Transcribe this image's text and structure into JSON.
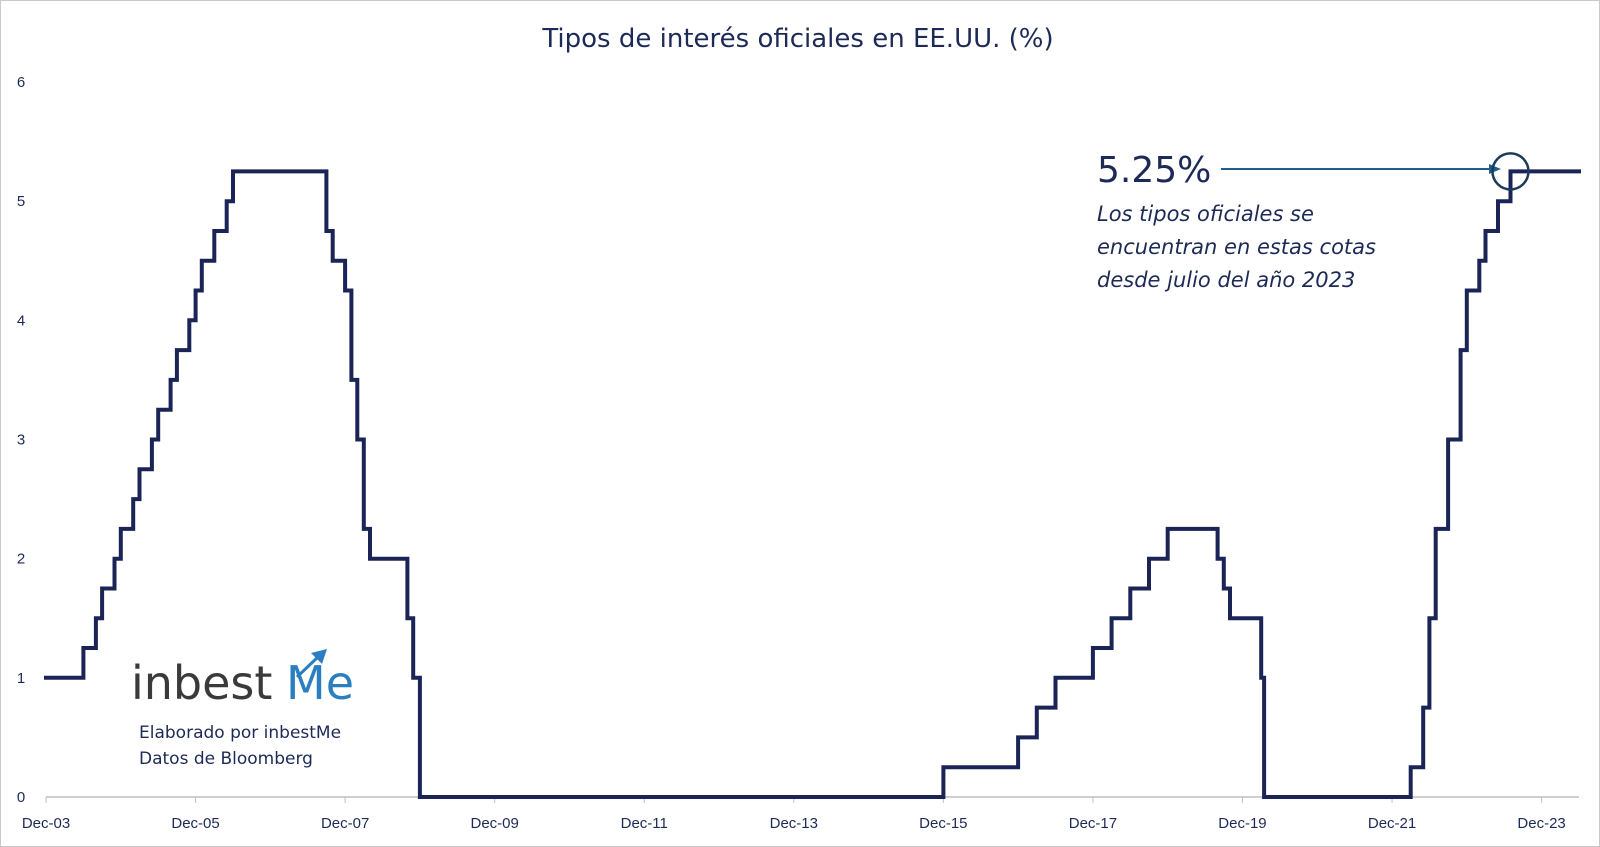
{
  "chart_data": {
    "type": "line",
    "step": true,
    "title": "Tipos de interés oficiales  en EE.UU. (%)",
    "xlabel": "",
    "ylabel": "",
    "ylim": [
      0,
      6
    ],
    "xlim": [
      "2003-12",
      "2024-06"
    ],
    "y_ticks": [
      "0",
      "1",
      "2",
      "3",
      "4",
      "5",
      "6"
    ],
    "x_ticks": [
      "Dec-03",
      "Dec-05",
      "Dec-07",
      "Dec-09",
      "Dec-11",
      "Dec-13",
      "Dec-15",
      "Dec-17",
      "Dec-19",
      "Dec-21",
      "Dec-23"
    ],
    "grid": false,
    "line_color": "#1b2456",
    "series": [
      {
        "points": [
          [
            "2003-12",
            1.0
          ],
          [
            "2004-06",
            1.25
          ],
          [
            "2004-08",
            1.5
          ],
          [
            "2004-09",
            1.75
          ],
          [
            "2004-11",
            2.0
          ],
          [
            "2004-12",
            2.25
          ],
          [
            "2005-02",
            2.5
          ],
          [
            "2005-03",
            2.75
          ],
          [
            "2005-05",
            3.0
          ],
          [
            "2005-06",
            3.25
          ],
          [
            "2005-08",
            3.5
          ],
          [
            "2005-09",
            3.75
          ],
          [
            "2005-11",
            4.0
          ],
          [
            "2005-12",
            4.25
          ],
          [
            "2006-01",
            4.5
          ],
          [
            "2006-03",
            4.75
          ],
          [
            "2006-05",
            5.0
          ],
          [
            "2006-06",
            5.25
          ],
          [
            "2007-09",
            4.75
          ],
          [
            "2007-10",
            4.5
          ],
          [
            "2007-12",
            4.25
          ],
          [
            "2008-01",
            3.5
          ],
          [
            "2008-01-30",
            3.0
          ],
          [
            "2008-03",
            2.25
          ],
          [
            "2008-04",
            2.0
          ],
          [
            "2008-10",
            1.5
          ],
          [
            "2008-10-29",
            1.0
          ],
          [
            "2008-12",
            0.0
          ],
          [
            "2015-12",
            0.25
          ],
          [
            "2016-12",
            0.5
          ],
          [
            "2017-03",
            0.75
          ],
          [
            "2017-06",
            1.0
          ],
          [
            "2017-12",
            1.25
          ],
          [
            "2018-03",
            1.5
          ],
          [
            "2018-06",
            1.75
          ],
          [
            "2018-09",
            2.0
          ],
          [
            "2018-12",
            2.25
          ],
          [
            "2019-08",
            2.0
          ],
          [
            "2019-09",
            1.75
          ],
          [
            "2019-10",
            1.5
          ],
          [
            "2020-03",
            1.0
          ],
          [
            "2020-03-15",
            0.0
          ],
          [
            "2022-03",
            0.25
          ],
          [
            "2022-05",
            0.75
          ],
          [
            "2022-06",
            1.5
          ],
          [
            "2022-07",
            2.25
          ],
          [
            "2022-09",
            3.0
          ],
          [
            "2022-11",
            3.75
          ],
          [
            "2022-12",
            4.25
          ],
          [
            "2023-02",
            4.5
          ],
          [
            "2023-03",
            4.75
          ],
          [
            "2023-05",
            5.0
          ],
          [
            "2023-07",
            5.25
          ],
          [
            "2024-06",
            5.25
          ]
        ]
      }
    ],
    "annotation": {
      "value": "5.25%",
      "lines": [
        "Los tipos oficiales se",
        "encuentran en estas cotas",
        "desde julio del año 2023"
      ],
      "target": [
        "2023-07",
        5.25
      ]
    }
  },
  "logo": {
    "brand_a": "inbest",
    "brand_b": "Me"
  },
  "credits": [
    "Elaborado por inbestMe",
    "Datos de Bloomberg"
  ],
  "colors": {
    "line": "#1b2456",
    "text": "#1d2a57",
    "axis": "#bfbfbf",
    "arrow": "#1f5f8b",
    "logo_accent": "#2b7fc1",
    "logo_text": "#3a3a3a"
  }
}
